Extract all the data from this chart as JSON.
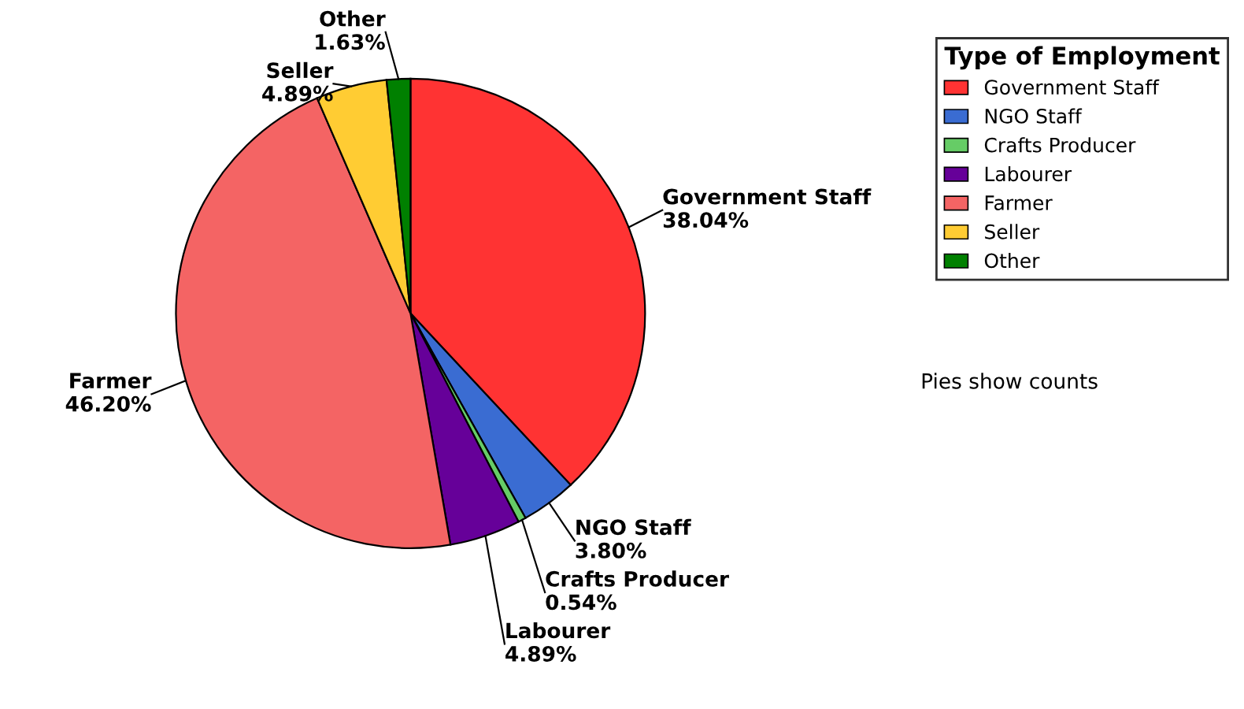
{
  "chart_data": {
    "type": "pie",
    "categories": [
      "Government Staff",
      "NGO Staff",
      "Crafts Producer",
      "Labourer",
      "Farmer",
      "Seller",
      "Other"
    ],
    "values": [
      38.04,
      3.8,
      0.54,
      4.89,
      46.2,
      4.89,
      1.63
    ],
    "colors": [
      "#ff3333",
      "#3a6cd2",
      "#66cc66",
      "#660099",
      "#f46464",
      "#ffcc33",
      "#008000"
    ],
    "value_labels": [
      "38.04%",
      "3.80%",
      "0.54%",
      "4.89%",
      "46.20%",
      "4.89%",
      "1.63%"
    ],
    "legend": "top right",
    "legend_title": "Type of Employment",
    "annotations": [
      "Pies show counts"
    ]
  }
}
